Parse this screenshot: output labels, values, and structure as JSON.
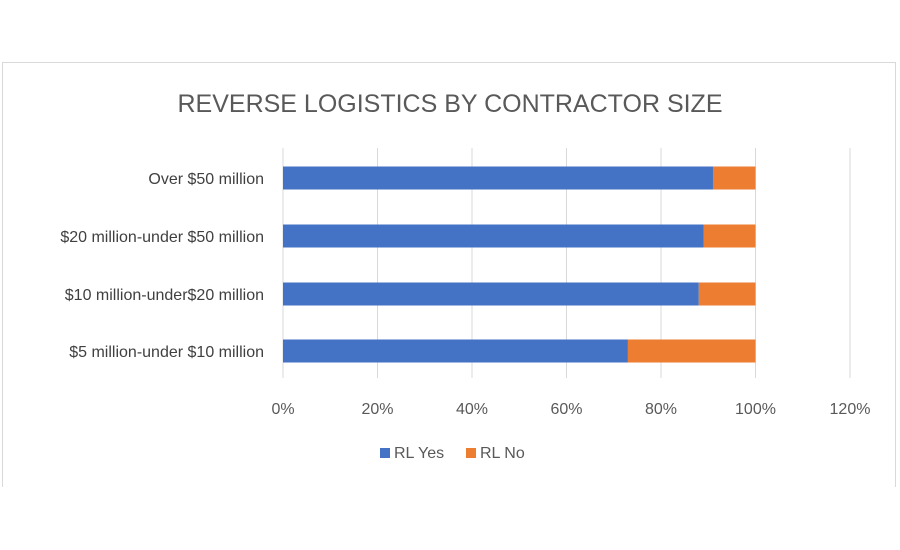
{
  "chart_data": {
    "type": "bar",
    "orientation": "horizontal",
    "stacked": true,
    "title": "REVERSE LOGISTICS BY CONTRACTOR SIZE",
    "categories": [
      "Over $50 million",
      "$20 million-under $50 million",
      "$10 million-under$20 million",
      "$5 million-under $10 million"
    ],
    "series": [
      {
        "name": "RL Yes",
        "color": "#4472C4",
        "values": [
          91,
          89,
          88,
          73
        ]
      },
      {
        "name": "RL No",
        "color": "#ED7D31",
        "values": [
          9,
          11,
          12,
          27
        ]
      }
    ],
    "xlim": [
      0,
      120
    ],
    "xticks": [
      0,
      20,
      40,
      60,
      80,
      100,
      120
    ],
    "xtick_labels": [
      "0%",
      "20%",
      "40%",
      "60%",
      "80%",
      "100%",
      "120%"
    ],
    "grid": "vertical",
    "legend_position": "bottom"
  }
}
